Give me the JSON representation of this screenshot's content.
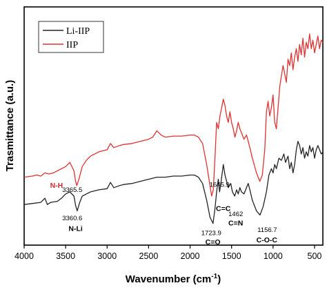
{
  "chart_data": {
    "type": "line",
    "title": "",
    "xlabel": "Wavenumber (cm",
    "xlabel_sup": "-1",
    "xlabel_close": ")",
    "ylabel": "Trasmittance (a.u.)",
    "xlim": [
      4000,
      400
    ],
    "x_reversed": true,
    "xticks": [
      "4000",
      "3500",
      "3000",
      "2500",
      "2000",
      "1500",
      "1000",
      "500"
    ],
    "xtick_values": [
      4000,
      3500,
      3000,
      2500,
      2000,
      1500,
      1000,
      500
    ],
    "ylim": [
      0,
      100
    ],
    "yticks_shown": false,
    "grid": false,
    "legend_position": "top-left",
    "series": [
      {
        "name": "Li-IIP",
        "color": "#222222",
        "points": [
          [
            4000,
            16
          ],
          [
            3900,
            16.5
          ],
          [
            3800,
            17
          ],
          [
            3750,
            19
          ],
          [
            3720,
            16
          ],
          [
            3680,
            17
          ],
          [
            3600,
            17.5
          ],
          [
            3550,
            19
          ],
          [
            3500,
            21
          ],
          [
            3450,
            22
          ],
          [
            3400,
            20
          ],
          [
            3380,
            15.5
          ],
          [
            3361,
            13
          ],
          [
            3330,
            17
          ],
          [
            3300,
            20
          ],
          [
            3250,
            21
          ],
          [
            3200,
            22
          ],
          [
            3100,
            23
          ],
          [
            3000,
            23.5
          ],
          [
            2960,
            26.5
          ],
          [
            2920,
            24
          ],
          [
            2850,
            25
          ],
          [
            2800,
            25.5
          ],
          [
            2700,
            26
          ],
          [
            2600,
            27
          ],
          [
            2500,
            28
          ],
          [
            2400,
            29
          ],
          [
            2300,
            29
          ],
          [
            2200,
            29.5
          ],
          [
            2100,
            29.5
          ],
          [
            2000,
            30
          ],
          [
            1950,
            30
          ],
          [
            1900,
            29
          ],
          [
            1850,
            26
          ],
          [
            1800,
            18
          ],
          [
            1760,
            10
          ],
          [
            1724,
            7
          ],
          [
            1700,
            14
          ],
          [
            1680,
            22
          ],
          [
            1660,
            28
          ],
          [
            1645,
            22
          ],
          [
            1630,
            26
          ],
          [
            1600,
            35
          ],
          [
            1580,
            30
          ],
          [
            1560,
            27
          ],
          [
            1540,
            24
          ],
          [
            1510,
            26
          ],
          [
            1490,
            22
          ],
          [
            1462,
            20
          ],
          [
            1440,
            23
          ],
          [
            1420,
            21
          ],
          [
            1400,
            24
          ],
          [
            1380,
            22
          ],
          [
            1350,
            21
          ],
          [
            1320,
            24
          ],
          [
            1300,
            26
          ],
          [
            1280,
            23
          ],
          [
            1250,
            18
          ],
          [
            1200,
            13
          ],
          [
            1157,
            11
          ],
          [
            1120,
            15
          ],
          [
            1080,
            22
          ],
          [
            1050,
            30
          ],
          [
            1020,
            33
          ],
          [
            1000,
            31
          ],
          [
            980,
            35
          ],
          [
            960,
            33
          ],
          [
            930,
            38
          ],
          [
            900,
            37
          ],
          [
            870,
            40
          ],
          [
            850,
            36
          ],
          [
            820,
            39
          ],
          [
            800,
            33
          ],
          [
            780,
            36
          ],
          [
            760,
            31
          ],
          [
            740,
            35
          ],
          [
            720,
            42
          ],
          [
            700,
            46
          ],
          [
            680,
            44
          ],
          [
            660,
            40
          ],
          [
            640,
            43
          ],
          [
            620,
            38
          ],
          [
            600,
            41
          ],
          [
            580,
            39
          ],
          [
            560,
            44
          ],
          [
            540,
            41
          ],
          [
            520,
            43
          ],
          [
            500,
            38
          ],
          [
            480,
            42
          ],
          [
            460,
            44
          ],
          [
            440,
            42
          ],
          [
            420,
            40
          ],
          [
            400,
            41
          ]
        ]
      },
      {
        "name": "IIP",
        "color": "#e03030",
        "points": [
          [
            4000,
            29
          ],
          [
            3900,
            29.5
          ],
          [
            3850,
            30
          ],
          [
            3800,
            29.5
          ],
          [
            3750,
            31
          ],
          [
            3700,
            30.5
          ],
          [
            3650,
            31
          ],
          [
            3600,
            32
          ],
          [
            3550,
            33
          ],
          [
            3500,
            34
          ],
          [
            3450,
            36
          ],
          [
            3400,
            32
          ],
          [
            3380,
            27
          ],
          [
            3366,
            25
          ],
          [
            3340,
            28
          ],
          [
            3300,
            34
          ],
          [
            3250,
            37
          ],
          [
            3200,
            39
          ],
          [
            3100,
            41
          ],
          [
            3000,
            42
          ],
          [
            2960,
            45
          ],
          [
            2920,
            43
          ],
          [
            2850,
            44
          ],
          [
            2800,
            44.5
          ],
          [
            2700,
            45
          ],
          [
            2600,
            46
          ],
          [
            2500,
            47
          ],
          [
            2450,
            48
          ],
          [
            2400,
            51
          ],
          [
            2350,
            49
          ],
          [
            2300,
            48
          ],
          [
            2200,
            48.5
          ],
          [
            2100,
            48.5
          ],
          [
            2000,
            49
          ],
          [
            1950,
            49
          ],
          [
            1900,
            48
          ],
          [
            1850,
            45
          ],
          [
            1800,
            35
          ],
          [
            1760,
            25
          ],
          [
            1740,
            20
          ],
          [
            1720,
            23
          ],
          [
            1700,
            38
          ],
          [
            1680,
            55
          ],
          [
            1660,
            52
          ],
          [
            1640,
            58
          ],
          [
            1620,
            62
          ],
          [
            1600,
            66
          ],
          [
            1580,
            63
          ],
          [
            1560,
            58
          ],
          [
            1540,
            55
          ],
          [
            1520,
            60
          ],
          [
            1500,
            55
          ],
          [
            1480,
            52
          ],
          [
            1460,
            48
          ],
          [
            1440,
            51
          ],
          [
            1420,
            55
          ],
          [
            1400,
            52
          ],
          [
            1380,
            50
          ],
          [
            1350,
            47
          ],
          [
            1320,
            49
          ],
          [
            1300,
            46
          ],
          [
            1280,
            43
          ],
          [
            1250,
            38
          ],
          [
            1200,
            31
          ],
          [
            1160,
            27
          ],
          [
            1130,
            30
          ],
          [
            1100,
            42
          ],
          [
            1080,
            60
          ],
          [
            1060,
            65
          ],
          [
            1040,
            58
          ],
          [
            1020,
            62
          ],
          [
            1000,
            68
          ],
          [
            980,
            55
          ],
          [
            960,
            52
          ],
          [
            940,
            62
          ],
          [
            920,
            72
          ],
          [
            900,
            77
          ],
          [
            880,
            82
          ],
          [
            860,
            78
          ],
          [
            840,
            74
          ],
          [
            820,
            85
          ],
          [
            800,
            82
          ],
          [
            780,
            88
          ],
          [
            760,
            80
          ],
          [
            740,
            86
          ],
          [
            720,
            90
          ],
          [
            700,
            84
          ],
          [
            680,
            92
          ],
          [
            660,
            87
          ],
          [
            640,
            95
          ],
          [
            620,
            86
          ],
          [
            600,
            93
          ],
          [
            580,
            90
          ],
          [
            560,
            97
          ],
          [
            540,
            90
          ],
          [
            520,
            94
          ],
          [
            500,
            88
          ],
          [
            480,
            92
          ],
          [
            460,
            96
          ],
          [
            440,
            90
          ],
          [
            420,
            94
          ],
          [
            400,
            93
          ]
        ]
      }
    ],
    "annotations": [
      {
        "text": "N-H",
        "x": 3610,
        "y": 24,
        "style": "red"
      },
      {
        "text": "3365.5",
        "x": 3420,
        "y": 22,
        "style": "num"
      },
      {
        "text": "3360.6",
        "x": 3420,
        "y": 8.5,
        "style": "num"
      },
      {
        "text": "N-Li",
        "x": 3380,
        "y": 3.5,
        "style": "bond"
      },
      {
        "text": "1645.9",
        "x": 1645,
        "y": 24.5,
        "style": "num"
      },
      {
        "text": "C=C",
        "x": 1600,
        "y": 13,
        "style": "bond"
      },
      {
        "text": "1462",
        "x": 1450,
        "y": 10.5,
        "style": "num"
      },
      {
        "text": "C=N",
        "x": 1450,
        "y": 6,
        "style": "bond"
      },
      {
        "text": "1723.9",
        "x": 1745,
        "y": 1.5,
        "style": "num"
      },
      {
        "text": "C=O",
        "x": 1725,
        "y": -3,
        "style": "bond"
      },
      {
        "text": "1156.7",
        "x": 1070,
        "y": 3,
        "style": "num"
      },
      {
        "text": "C-O-C",
        "x": 1075,
        "y": -2,
        "style": "bond"
      }
    ]
  }
}
